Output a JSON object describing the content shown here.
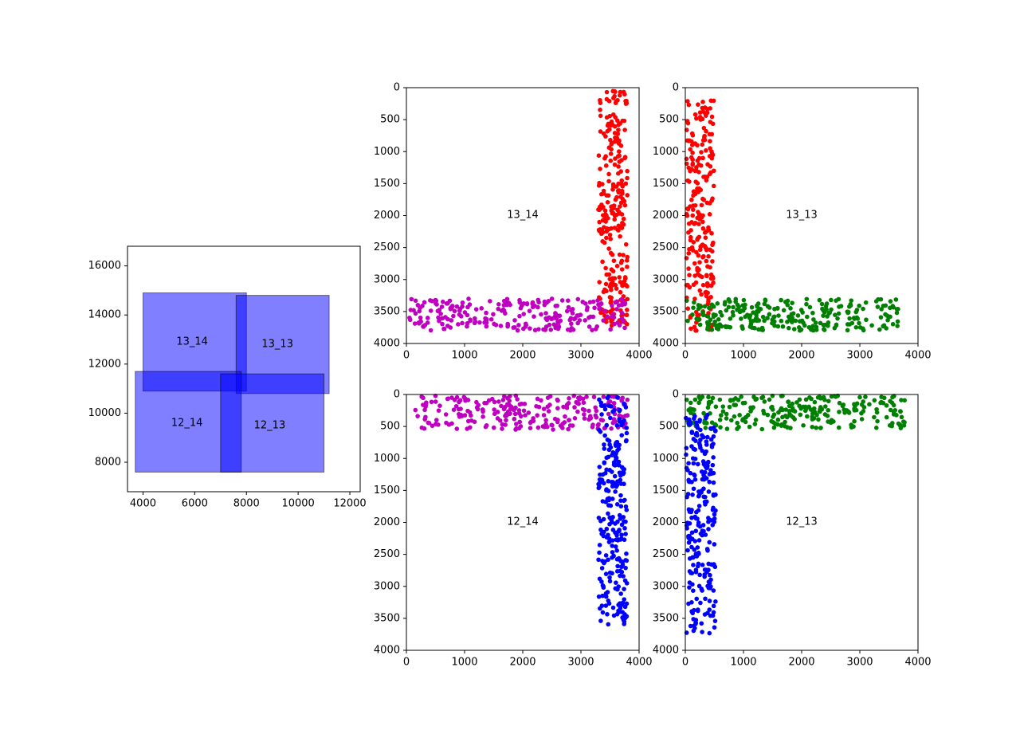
{
  "chart_data": [
    {
      "type": "rectangles",
      "xlim": [
        3400,
        12400
      ],
      "ylim": [
        6800,
        16800
      ],
      "xticks": [
        4000,
        6000,
        8000,
        10000,
        12000
      ],
      "yticks": [
        8000,
        10000,
        12000,
        14000,
        16000
      ],
      "xtick_labels": [
        "4000",
        "6000",
        "8000",
        "10000",
        "12000"
      ],
      "ytick_labels": [
        "8000",
        "10000",
        "12000",
        "14000",
        "16000"
      ],
      "fill_color": "#0000ff",
      "rects": [
        {
          "x0": 4000,
          "x1": 8000,
          "y0": 10900,
          "y1": 14900
        },
        {
          "x0": 7600,
          "x1": 11200,
          "y0": 10800,
          "y1": 14800
        },
        {
          "x0": 3700,
          "x1": 7800,
          "y0": 7600,
          "y1": 11700
        },
        {
          "x0": 7000,
          "x1": 11000,
          "y0": 7600,
          "y1": 11600
        }
      ],
      "labels": [
        {
          "text": "13_14",
          "x": 5900,
          "y": 12900
        },
        {
          "text": "13_13",
          "x": 9200,
          "y": 12800
        },
        {
          "text": "12_14",
          "x": 5700,
          "y": 9600
        },
        {
          "text": "12_13",
          "x": 8900,
          "y": 9500
        }
      ]
    },
    {
      "type": "scatter",
      "label": "13_14",
      "xlim": [
        0,
        4000
      ],
      "ylim": [
        4000,
        0
      ],
      "xticks": [
        0,
        1000,
        2000,
        3000,
        4000
      ],
      "yticks": [
        0,
        500,
        1000,
        1500,
        2000,
        2500,
        3000,
        3500,
        4000
      ],
      "series": [
        {
          "color": "#ff0000",
          "bands": [
            {
              "x": [
                3300,
                3800
              ],
              "y": [
                50,
                3750
              ]
            }
          ],
          "n": 260
        },
        {
          "color": "#c000c0",
          "bands": [
            {
              "x": [
                50,
                3800
              ],
              "y": [
                3300,
                3800
              ]
            }
          ],
          "n": 240
        }
      ]
    },
    {
      "type": "scatter",
      "label": "13_13",
      "xlim": [
        0,
        4000
      ],
      "ylim": [
        4000,
        0
      ],
      "xticks": [
        0,
        1000,
        2000,
        3000,
        4000
      ],
      "yticks": [
        0,
        500,
        1000,
        1500,
        2000,
        2500,
        3000,
        3500,
        4000
      ],
      "series": [
        {
          "color": "#ff0000",
          "bands": [
            {
              "x": [
                20,
                500
              ],
              "y": [
                200,
                3800
              ]
            }
          ],
          "n": 240
        },
        {
          "color": "#008000",
          "bands": [
            {
              "x": [
                20,
                3700
              ],
              "y": [
                3300,
                3800
              ]
            }
          ],
          "n": 250
        }
      ]
    },
    {
      "type": "scatter",
      "label": "12_14",
      "xlim": [
        0,
        4000
      ],
      "ylim": [
        4000,
        0
      ],
      "xticks": [
        0,
        1000,
        2000,
        3000,
        4000
      ],
      "yticks": [
        0,
        500,
        1000,
        1500,
        2000,
        2500,
        3000,
        3500,
        4000
      ],
      "series": [
        {
          "color": "#c000c0",
          "bands": [
            {
              "x": [
                100,
                3800
              ],
              "y": [
                20,
                550
              ]
            }
          ],
          "n": 240
        },
        {
          "color": "#0000ff",
          "bands": [
            {
              "x": [
                3300,
                3800
              ],
              "y": [
                20,
                3650
              ]
            }
          ],
          "n": 250
        }
      ]
    },
    {
      "type": "scatter",
      "label": "12_13",
      "xlim": [
        0,
        4000
      ],
      "ylim": [
        4000,
        0
      ],
      "xticks": [
        0,
        1000,
        2000,
        3000,
        4000
      ],
      "yticks": [
        0,
        500,
        1000,
        1500,
        2000,
        2500,
        3000,
        3500,
        4000
      ],
      "series": [
        {
          "color": "#008000",
          "bands": [
            {
              "x": [
                20,
                3800
              ],
              "y": [
                20,
                550
              ]
            }
          ],
          "n": 250
        },
        {
          "color": "#0000ff",
          "bands": [
            {
              "x": [
                10,
                520
              ],
              "y": [
                300,
                3750
              ]
            }
          ],
          "n": 240
        }
      ]
    }
  ]
}
